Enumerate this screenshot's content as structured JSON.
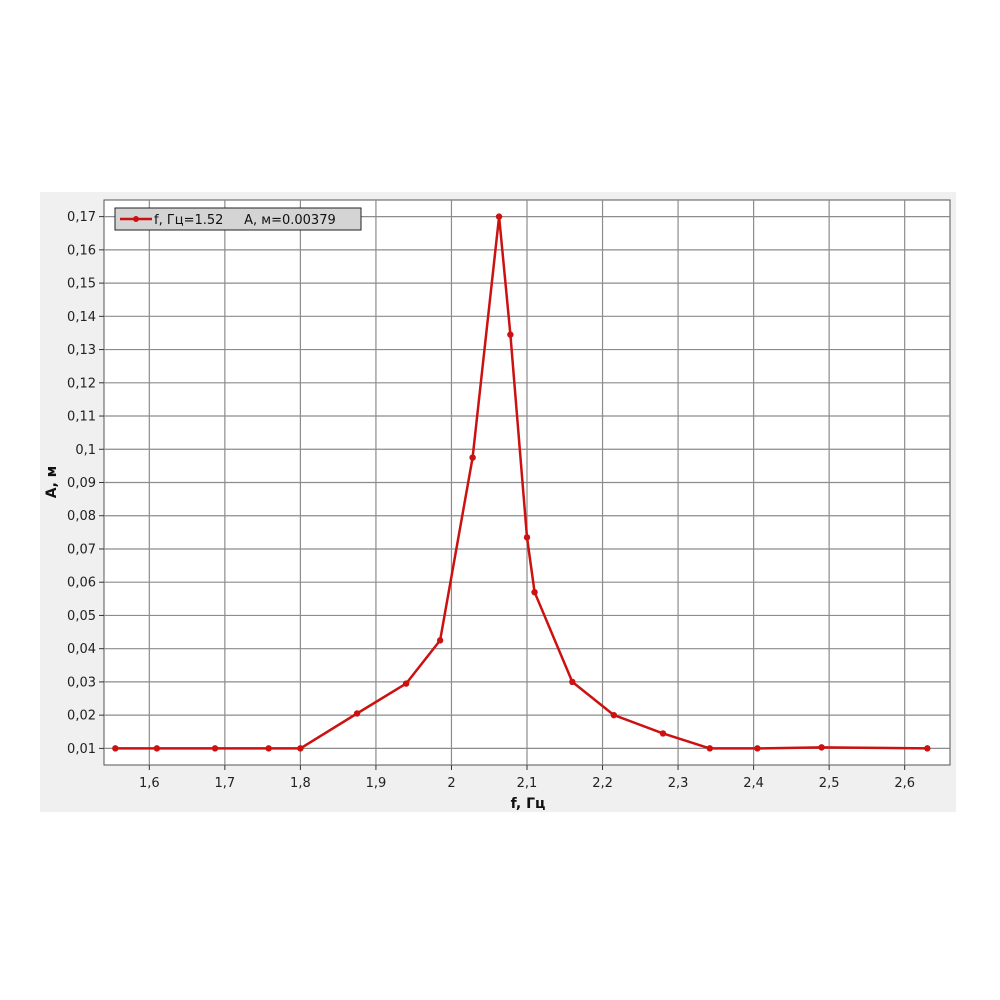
{
  "chart_data": {
    "type": "line",
    "xlabel": "f, Гц",
    "ylabel": "А, м",
    "xlim": [
      1.54,
      2.66
    ],
    "ylim": [
      0.005,
      0.175
    ],
    "x_ticks": [
      "1,6",
      "1,7",
      "1,8",
      "1,9",
      "2",
      "2,1",
      "2,2",
      "2,3",
      "2,4",
      "2,5",
      "2,6"
    ],
    "x_tick_values": [
      1.6,
      1.7,
      1.8,
      1.9,
      2.0,
      2.1,
      2.2,
      2.3,
      2.4,
      2.5,
      2.6
    ],
    "y_ticks": [
      "0,01",
      "0,02",
      "0,03",
      "0,04",
      "0,05",
      "0,06",
      "0,07",
      "0,08",
      "0,09",
      "0,1",
      "0,11",
      "0,12",
      "0,13",
      "0,14",
      "0,15",
      "0,16",
      "0,17"
    ],
    "y_tick_values": [
      0.01,
      0.02,
      0.03,
      0.04,
      0.05,
      0.06,
      0.07,
      0.08,
      0.09,
      0.1,
      0.11,
      0.12,
      0.13,
      0.14,
      0.15,
      0.16,
      0.17
    ],
    "grid": true,
    "legend": {
      "position": "top-left",
      "text": "f, Гц=1.52     А, м=0.00379"
    },
    "series": [
      {
        "color": "#cc1111",
        "x": [
          1.555,
          1.61,
          1.687,
          1.758,
          1.8,
          1.875,
          1.94,
          1.985,
          2.028,
          2.063,
          2.078,
          2.1,
          2.11,
          2.16,
          2.215,
          2.28,
          2.342,
          2.405,
          2.49,
          2.63
        ],
        "y": [
          0.01,
          0.01,
          0.01,
          0.01,
          0.01,
          0.0205,
          0.0295,
          0.0425,
          0.0975,
          0.17,
          0.1345,
          0.0735,
          0.057,
          0.03,
          0.02,
          0.0145,
          0.01,
          0.01,
          0.0103,
          0.01
        ]
      }
    ]
  }
}
